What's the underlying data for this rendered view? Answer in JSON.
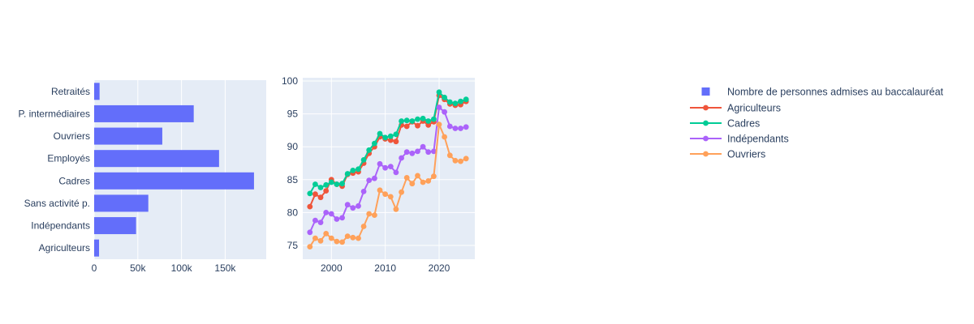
{
  "figure": {
    "plot_bgcolor": "#e5ecf6",
    "grid_color": "#ffffff",
    "text_color": "#2a3f5f",
    "paper_color": "#ffffff"
  },
  "chart_data": [
    {
      "type": "bar",
      "name": "Nombre de personnes admises au baccalauréat",
      "orientation": "horizontal",
      "bar_color": "#636efa",
      "categories_top_to_bottom": [
        "Retraités",
        "P. intermédiaires",
        "Ouvriers",
        "Employés",
        "Cadres",
        "Sans activité p.",
        "Indépendants",
        "Agriculteurs"
      ],
      "values": [
        6200,
        114000,
        78000,
        143000,
        183000,
        62000,
        48000,
        5600
      ],
      "xlim": [
        0,
        197000
      ],
      "xticks": [
        {
          "v": 0,
          "label": "0"
        },
        {
          "v": 50000,
          "label": "50k"
        },
        {
          "v": 100000,
          "label": "100k"
        },
        {
          "v": 150000,
          "label": "150k"
        }
      ],
      "grid": true,
      "ylabel": "",
      "xlabel": ""
    },
    {
      "type": "line",
      "title": "",
      "x": [
        1996,
        1997,
        1998,
        1999,
        2000,
        2001,
        2002,
        2003,
        2004,
        2005,
        2006,
        2007,
        2008,
        2009,
        2010,
        2011,
        2012,
        2013,
        2014,
        2015,
        2016,
        2017,
        2018,
        2019,
        2020,
        2021,
        2022,
        2023,
        2024,
        2025
      ],
      "xticks": [
        {
          "v": 2000,
          "label": "2000"
        },
        {
          "v": 2010,
          "label": "2010"
        },
        {
          "v": 2020,
          "label": "2020"
        }
      ],
      "yticks": [
        {
          "v": 75,
          "label": "75"
        },
        {
          "v": 80,
          "label": "80"
        },
        {
          "v": 85,
          "label": "85"
        },
        {
          "v": 90,
          "label": "90"
        },
        {
          "v": 95,
          "label": "95"
        },
        {
          "v": 100,
          "label": "100"
        }
      ],
      "ylim": [
        72.9,
        100.5
      ],
      "xlim": [
        1994.7,
        2026.7
      ],
      "grid": true,
      "marker": "circle",
      "series": [
        {
          "name": "Agriculteurs",
          "color": "#EF553B",
          "values": [
            80.9,
            82.8,
            82.3,
            83.3,
            85.0,
            84.3,
            84.0,
            85.8,
            86.0,
            86.2,
            87.5,
            89.0,
            90.0,
            91.5,
            91.2,
            91.0,
            90.8,
            93.3,
            93.1,
            93.8,
            93.2,
            93.9,
            93.3,
            93.8,
            97.8,
            97.2,
            96.5,
            96.3,
            96.4,
            96.9
          ]
        },
        {
          "name": "Cadres",
          "color": "#00CC96",
          "values": [
            82.9,
            84.3,
            83.8,
            84.2,
            84.6,
            84.3,
            84.4,
            85.9,
            86.4,
            86.6,
            88.0,
            89.5,
            90.5,
            92.0,
            91.4,
            91.6,
            91.9,
            93.9,
            94.0,
            93.9,
            94.2,
            94.3,
            93.9,
            94.2,
            98.3,
            97.5,
            96.8,
            96.6,
            96.9,
            97.2
          ]
        },
        {
          "name": "Indépendants",
          "color": "#AB63FA",
          "values": [
            77.0,
            78.8,
            78.5,
            80.0,
            79.8,
            79.0,
            79.2,
            81.2,
            80.7,
            81.0,
            83.2,
            84.9,
            85.2,
            87.4,
            86.8,
            87.0,
            86.1,
            88.3,
            89.2,
            89.0,
            89.3,
            90.0,
            89.2,
            89.3,
            96.0,
            95.3,
            93.1,
            92.8,
            92.8,
            93.0
          ]
        },
        {
          "name": "Ouvriers",
          "color": "#FFA15A",
          "values": [
            74.8,
            76.1,
            75.7,
            76.8,
            76.1,
            75.6,
            75.5,
            76.4,
            76.2,
            76.1,
            77.9,
            79.8,
            79.6,
            83.4,
            82.8,
            82.4,
            80.5,
            83.1,
            85.3,
            84.4,
            85.6,
            84.6,
            84.8,
            85.5,
            93.4,
            91.5,
            88.7,
            87.9,
            87.8,
            88.2
          ]
        }
      ]
    }
  ],
  "legend": {
    "position": "right",
    "items": [
      {
        "label": "Nombre de personnes admises au baccalauréat",
        "marker": "square",
        "color": "#636efa"
      },
      {
        "label": "Agriculteurs",
        "marker": "line-dot",
        "color": "#EF553B"
      },
      {
        "label": "Cadres",
        "marker": "line-dot",
        "color": "#00CC96"
      },
      {
        "label": "Indépendants",
        "marker": "line-dot",
        "color": "#AB63FA"
      },
      {
        "label": "Ouvriers",
        "marker": "line-dot",
        "color": "#FFA15A"
      }
    ]
  }
}
